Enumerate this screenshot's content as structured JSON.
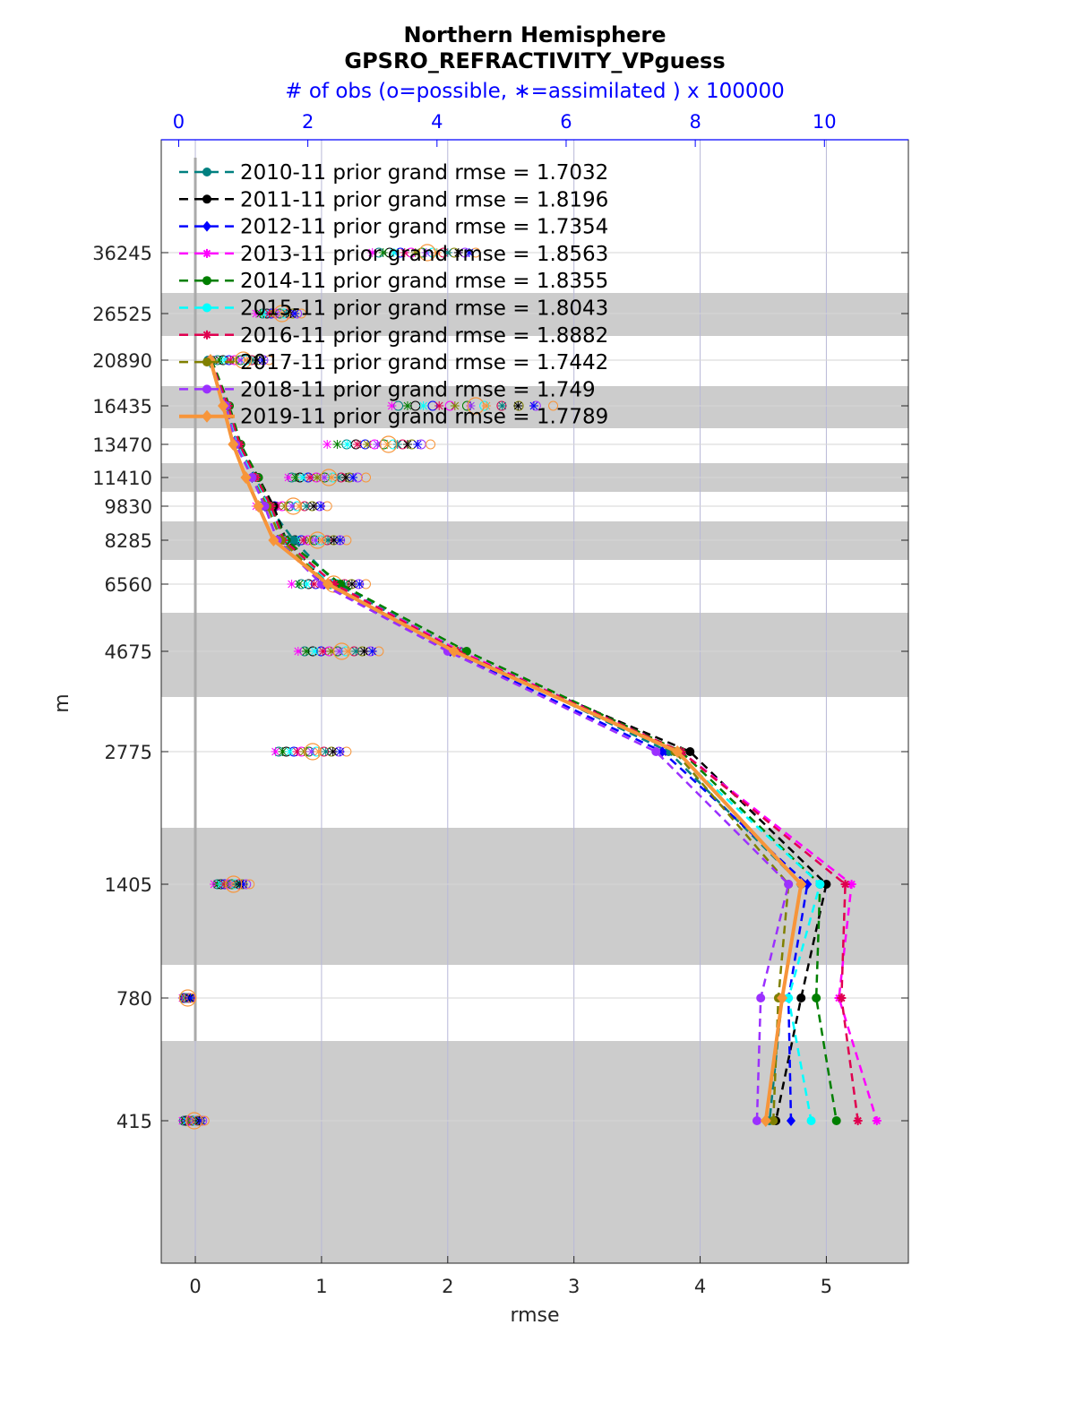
{
  "chart_data": {
    "type": "line",
    "title": "Northern Hemisphere",
    "subtitle": "GPSRO_REFRACTIVITY_VPguess",
    "top_axis_label": "# of obs (o=possible, ∗=assimilated ) x 100000",
    "xlabel": "rmse",
    "ylabel": "m",
    "xlim": [
      -0.27,
      5.65
    ],
    "top_xlim": [
      -0.27,
      11.3
    ],
    "top_xticks": [
      "0",
      "2",
      "4",
      "6",
      "8",
      "10"
    ],
    "xticks": [
      "0",
      "1",
      "2",
      "3",
      "4",
      "5"
    ],
    "yticks": [
      "36245",
      "26525",
      "20890",
      "16435",
      "13470",
      "11410",
      "9830",
      "8285",
      "6560",
      "4675",
      "2775",
      "1405",
      "780",
      "415"
    ],
    "legend_position": "top-left",
    "grid": true,
    "series": [
      {
        "name": "2010-11 prior grand rmse = 1.7032",
        "color": "#008080",
        "marker": "circle",
        "values": [
          0.1,
          0.25,
          0.33,
          0.48,
          0.58,
          0.78,
          1.12,
          2.1,
          3.75,
          4.8,
          4.65,
          4.55
        ]
      },
      {
        "name": "2011-11 prior grand rmse = 1.8196",
        "color": "#000000",
        "marker": "circle",
        "values": [
          0.12,
          0.26,
          0.35,
          0.5,
          0.62,
          0.72,
          1.05,
          2.05,
          3.92,
          5.0,
          4.8,
          4.6
        ]
      },
      {
        "name": "2012-11 prior grand rmse = 1.7354",
        "color": "#0000ff",
        "marker": "diamond",
        "values": [
          0.12,
          0.24,
          0.32,
          0.45,
          0.55,
          0.65,
          1.02,
          2.02,
          3.7,
          4.85,
          4.7,
          4.72
        ]
      },
      {
        "name": "2013-11 prior grand rmse = 1.8563",
        "color": "#ff00ff",
        "marker": "star",
        "values": [
          0.12,
          0.26,
          0.34,
          0.47,
          0.6,
          0.7,
          1.1,
          2.1,
          3.85,
          5.2,
          5.1,
          5.4
        ]
      },
      {
        "name": "2014-11 prior grand rmse = 1.8355",
        "color": "#007f00",
        "marker": "circle",
        "values": [
          0.13,
          0.27,
          0.36,
          0.5,
          0.6,
          0.72,
          1.15,
          2.15,
          3.85,
          4.95,
          4.92,
          5.08
        ]
      },
      {
        "name": "2015-11 prior grand rmse = 1.8043",
        "color": "#00ffff",
        "marker": "circle",
        "values": [
          0.12,
          0.25,
          0.33,
          0.47,
          0.58,
          0.7,
          1.08,
          2.08,
          3.8,
          4.95,
          4.7,
          4.88
        ]
      },
      {
        "name": "2016-11 prior grand rmse = 1.8882",
        "color": "#e0004f",
        "marker": "star",
        "values": [
          0.12,
          0.26,
          0.35,
          0.48,
          0.6,
          0.7,
          1.1,
          2.08,
          3.85,
          5.15,
          5.12,
          5.25
        ]
      },
      {
        "name": "2017-11 prior grand rmse = 1.7442",
        "color": "#808000",
        "marker": "circle",
        "values": [
          0.12,
          0.24,
          0.32,
          0.45,
          0.57,
          0.68,
          1.05,
          2.05,
          3.8,
          4.7,
          4.62,
          4.58
        ]
      },
      {
        "name": "2018-11 prior grand rmse = 1.749",
        "color": "#9b30ff",
        "marker": "circle",
        "values": [
          0.12,
          0.24,
          0.32,
          0.45,
          0.55,
          0.65,
          1.0,
          2.0,
          3.65,
          4.7,
          4.48,
          4.45
        ]
      },
      {
        "name": "2019-11 prior grand rmse = 1.7789",
        "color": "#f7953a",
        "marker": "diamond",
        "values": [
          0.12,
          0.22,
          0.3,
          0.4,
          0.5,
          0.62,
          1.05,
          2.05,
          3.82,
          4.8,
          4.65,
          4.52
        ]
      }
    ],
    "levels": [
      20890,
      16435,
      13470,
      11410,
      9830,
      8285,
      6560,
      4675,
      2775,
      1405,
      780,
      415
    ],
    "obs_counts": {
      "levels": [
        36245,
        26525,
        20890,
        16435,
        13470,
        11410,
        9830,
        8285,
        6560,
        4675,
        2775,
        1405,
        780,
        415
      ],
      "possible_min": [
        3.1,
        1.3,
        0.6,
        3.4,
        2.6,
        1.75,
        1.25,
        1.7,
        1.9,
        1.95,
        1.55,
        0.6,
        0.08,
        0.08
      ],
      "possible_max": [
        4.6,
        1.9,
        1.4,
        5.8,
        3.9,
        2.9,
        2.3,
        2.6,
        2.9,
        3.1,
        2.6,
        1.1,
        0.2,
        0.4
      ],
      "assimilated_min": [
        3.0,
        1.2,
        0.55,
        3.3,
        2.3,
        1.7,
        1.2,
        1.65,
        1.75,
        1.85,
        1.5,
        0.55,
        0.06,
        0.06
      ],
      "assimilated_max": [
        4.5,
        1.8,
        1.3,
        5.5,
        3.7,
        2.7,
        2.2,
        2.5,
        2.8,
        3.0,
        2.5,
        1.0,
        0.18,
        0.35
      ]
    }
  }
}
